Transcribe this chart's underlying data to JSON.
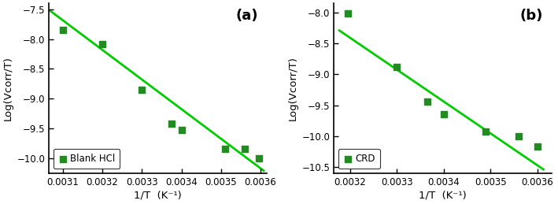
{
  "panel_a": {
    "scatter_x": [
      0.0031,
      0.0032,
      0.0033,
      0.003375,
      0.0034,
      0.00351,
      0.00356,
      0.003595
    ],
    "scatter_y": [
      -7.85,
      -8.08,
      -8.85,
      -9.42,
      -9.52,
      -9.84,
      -9.84,
      -10.0
    ],
    "line_x": [
      0.003065,
      0.00361
    ],
    "line_y": [
      -7.51,
      -10.22
    ],
    "xlim": [
      0.003065,
      0.003615
    ],
    "ylim": [
      -10.25,
      -7.4
    ],
    "xticks": [
      0.0031,
      0.0032,
      0.0033,
      0.0034,
      0.0035,
      0.0036
    ],
    "yticks": [
      -10.0,
      -9.5,
      -9.0,
      -8.5,
      -8.0,
      -7.5
    ],
    "xlabel": "1/T  (K⁻¹)",
    "ylabel": "Log(Vcorr/T)",
    "legend_label": "Blank HCl",
    "panel_label": "(a)"
  },
  "panel_b": {
    "scatter_x": [
      0.003195,
      0.0033,
      0.003365,
      0.0034,
      0.00349,
      0.00356,
      0.0036
    ],
    "scatter_y": [
      -8.02,
      -8.88,
      -9.44,
      -9.65,
      -9.93,
      -10.0,
      -10.17
    ],
    "line_x": [
      0.003175,
      0.003615
    ],
    "line_y": [
      -8.28,
      -10.55
    ],
    "xlim": [
      0.003165,
      0.00363
    ],
    "ylim": [
      -10.6,
      -7.85
    ],
    "xticks": [
      0.0032,
      0.0033,
      0.0034,
      0.0035,
      0.0036
    ],
    "yticks": [
      -10.5,
      -10.0,
      -9.5,
      -9.0,
      -8.5,
      -8.0
    ],
    "xlabel": "1/T  (K⁻¹)",
    "ylabel": "Log(Vcorr/T)",
    "legend_label": "CRD",
    "panel_label": "(b)"
  },
  "line_color": "#00CC00",
  "scatter_color": "#228B22",
  "marker": "s",
  "markersize": 6,
  "linewidth": 2.0,
  "font_size_tick": 8.5,
  "font_size_label": 9.5,
  "font_size_panel": 13,
  "fig_width": 7.09,
  "fig_height": 2.59,
  "dpi": 100
}
